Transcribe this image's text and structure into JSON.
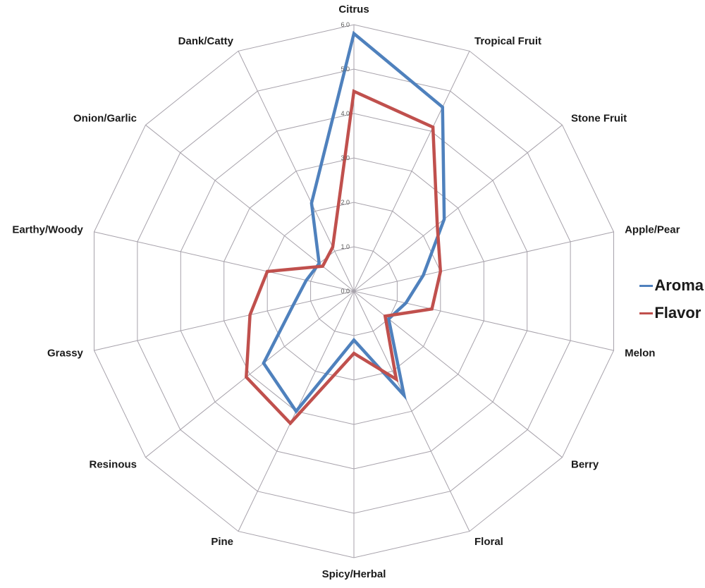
{
  "chart_data": {
    "type": "radar",
    "title": "",
    "categories": [
      "Citrus",
      "Tropical Fruit",
      "Stone Fruit",
      "Apple/Pear",
      "Melon",
      "Berry",
      "Floral",
      "Spicy/Herbal",
      "Pine",
      "Resinous",
      "Grassy",
      "Earthy/Woody",
      "Onion/Garlic",
      "Dank/Catty"
    ],
    "series": [
      {
        "name": "Aroma",
        "color": "#4F81BD",
        "values": [
          5.8,
          4.6,
          2.6,
          1.6,
          1.2,
          1.0,
          2.6,
          1.1,
          3.0,
          2.6,
          1.4,
          1.1,
          1.0,
          2.2
        ]
      },
      {
        "name": "Flavor",
        "color": "#C0504D",
        "values": [
          4.5,
          4.1,
          2.4,
          2.0,
          1.8,
          0.9,
          2.2,
          1.4,
          3.3,
          3.1,
          2.4,
          2.0,
          0.9,
          1.1
        ]
      }
    ],
    "radial_axis": {
      "min": 0,
      "max": 6,
      "tick_step": 1,
      "tick_labels": [
        "0.0",
        "1.0",
        "2.0",
        "3.0",
        "4.0",
        "5.0",
        "6.0"
      ]
    },
    "grid": {
      "show": true,
      "color": "#a7a2ab",
      "rings": 6,
      "spokes": 14
    },
    "legend": {
      "position": "right",
      "entries": [
        "Aroma",
        "Flavor"
      ]
    }
  }
}
